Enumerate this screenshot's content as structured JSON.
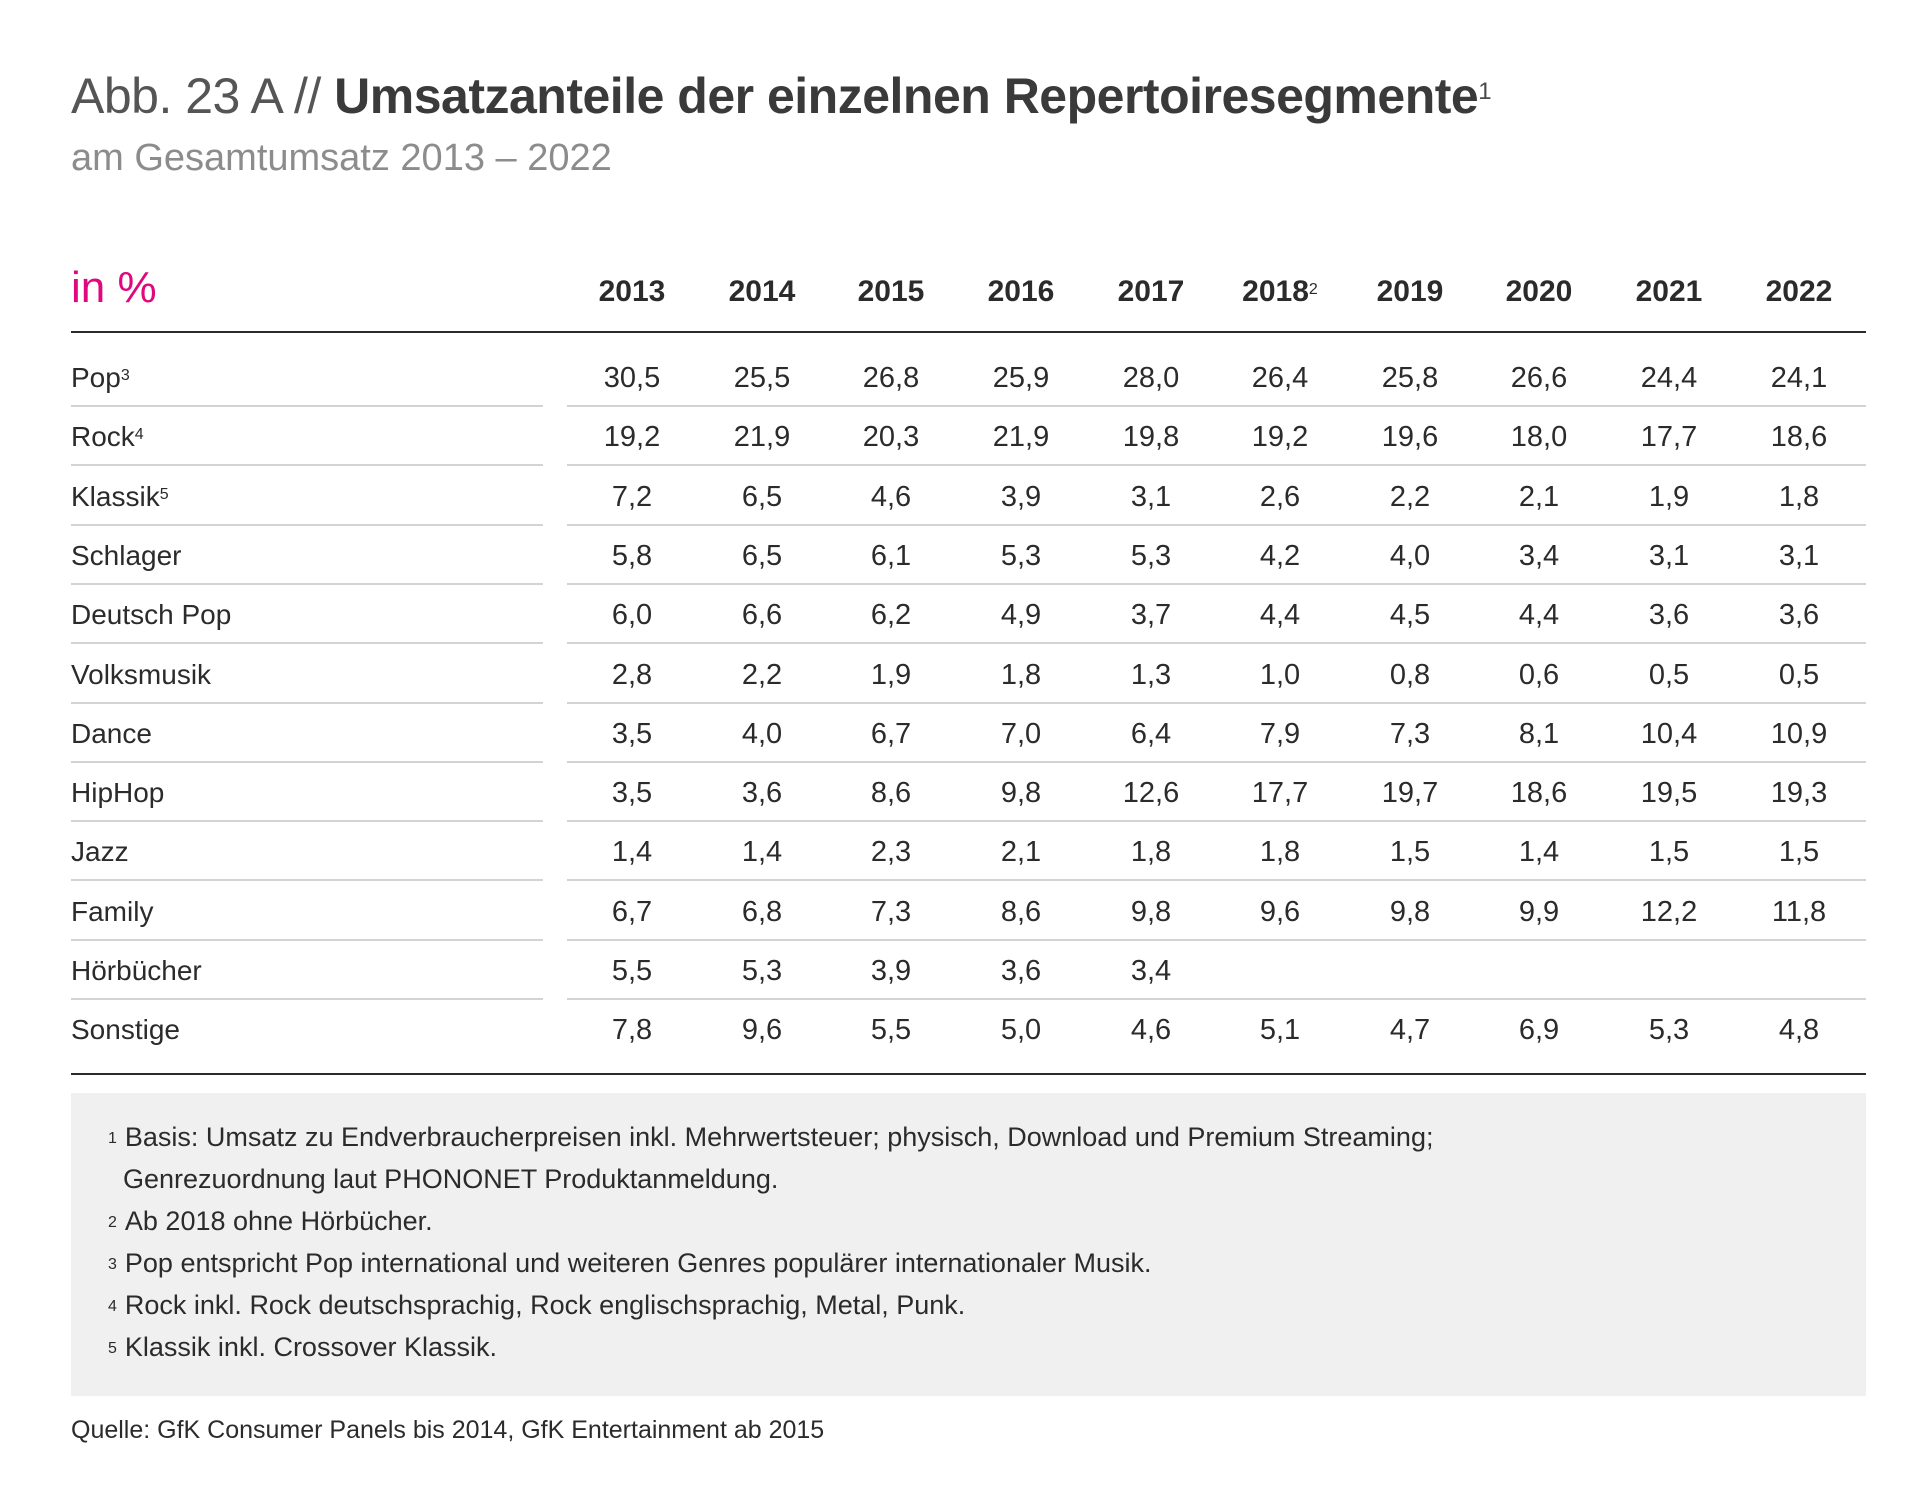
{
  "title": {
    "prefix": "Abb. 23 A // ",
    "main": "Umsatzanteile der einzelnen Repertoiresegmente",
    "footnote_mark": "1"
  },
  "subtitle": "am Gesamtumsatz 2013 – 2022",
  "unit_label": "in %",
  "colors": {
    "accent": "#e0087e",
    "rule": "#2b2b2b",
    "divider": "#d3d3d3",
    "notes_bg": "#f0f0f0"
  },
  "chart_data": {
    "type": "table",
    "columns": [
      {
        "label": "2013",
        "mark": ""
      },
      {
        "label": "2014",
        "mark": ""
      },
      {
        "label": "2015",
        "mark": ""
      },
      {
        "label": "2016",
        "mark": ""
      },
      {
        "label": "2017",
        "mark": ""
      },
      {
        "label": "2018",
        "mark": "2"
      },
      {
        "label": "2019",
        "mark": ""
      },
      {
        "label": "2020",
        "mark": ""
      },
      {
        "label": "2021",
        "mark": ""
      },
      {
        "label": "2022",
        "mark": ""
      }
    ],
    "rows": [
      {
        "label": "Pop",
        "mark": "3",
        "values": [
          "30,5",
          "25,5",
          "26,8",
          "25,9",
          "28,0",
          "26,4",
          "25,8",
          "26,6",
          "24,4",
          "24,1"
        ]
      },
      {
        "label": "Rock",
        "mark": "4",
        "values": [
          "19,2",
          "21,9",
          "20,3",
          "21,9",
          "19,8",
          "19,2",
          "19,6",
          "18,0",
          "17,7",
          "18,6"
        ]
      },
      {
        "label": "Klassik",
        "mark": "5",
        "values": [
          "7,2",
          "6,5",
          "4,6",
          "3,9",
          "3,1",
          "2,6",
          "2,2",
          "2,1",
          "1,9",
          "1,8"
        ]
      },
      {
        "label": "Schlager",
        "mark": "",
        "values": [
          "5,8",
          "6,5",
          "6,1",
          "5,3",
          "5,3",
          "4,2",
          "4,0",
          "3,4",
          "3,1",
          "3,1"
        ]
      },
      {
        "label": "Deutsch Pop",
        "mark": "",
        "values": [
          "6,0",
          "6,6",
          "6,2",
          "4,9",
          "3,7",
          "4,4",
          "4,5",
          "4,4",
          "3,6",
          "3,6"
        ]
      },
      {
        "label": "Volksmusik",
        "mark": "",
        "values": [
          "2,8",
          "2,2",
          "1,9",
          "1,8",
          "1,3",
          "1,0",
          "0,8",
          "0,6",
          "0,5",
          "0,5"
        ]
      },
      {
        "label": "Dance",
        "mark": "",
        "values": [
          "3,5",
          "4,0",
          "6,7",
          "7,0",
          "6,4",
          "7,9",
          "7,3",
          "8,1",
          "10,4",
          "10,9"
        ]
      },
      {
        "label": "HipHop",
        "mark": "",
        "values": [
          "3,5",
          "3,6",
          "8,6",
          "9,8",
          "12,6",
          "17,7",
          "19,7",
          "18,6",
          "19,5",
          "19,3"
        ]
      },
      {
        "label": "Jazz",
        "mark": "",
        "values": [
          "1,4",
          "1,4",
          "2,3",
          "2,1",
          "1,8",
          "1,8",
          "1,5",
          "1,4",
          "1,5",
          "1,5"
        ]
      },
      {
        "label": "Family",
        "mark": "",
        "values": [
          "6,7",
          "6,8",
          "7,3",
          "8,6",
          "9,8",
          "9,6",
          "9,8",
          "9,9",
          "12,2",
          "11,8"
        ]
      },
      {
        "label": "Hörbücher",
        "mark": "",
        "values": [
          "5,5",
          "5,3",
          "3,9",
          "3,6",
          "3,4",
          "",
          "",
          "",
          "",
          ""
        ]
      },
      {
        "label": "Sonstige",
        "mark": "",
        "values": [
          "7,8",
          "9,6",
          "5,5",
          "5,0",
          "4,6",
          "5,1",
          "4,7",
          "6,9",
          "5,3",
          "4,8"
        ]
      }
    ]
  },
  "footnotes": [
    {
      "mark": "1",
      "lines": [
        "Basis: Umsatz zu Endverbraucherpreisen inkl. Mehrwertsteuer; physisch, Download und Premium Streaming;",
        "Genrezuordnung laut PHONONET Produktanmeldung."
      ]
    },
    {
      "mark": "2",
      "lines": [
        "Ab 2018 ohne Hörbücher."
      ]
    },
    {
      "mark": "3",
      "lines": [
        "Pop entspricht Pop international und weiteren Genres populärer internationaler Musik."
      ]
    },
    {
      "mark": "4",
      "lines": [
        "Rock inkl. Rock deutschsprachig, Rock englischsprachig, Metal, Punk."
      ]
    },
    {
      "mark": "5",
      "lines": [
        "Klassik inkl. Crossover Klassik."
      ]
    }
  ],
  "source": "Quelle: GfK Consumer Panels bis 2014, GfK Entertainment ab 2015"
}
